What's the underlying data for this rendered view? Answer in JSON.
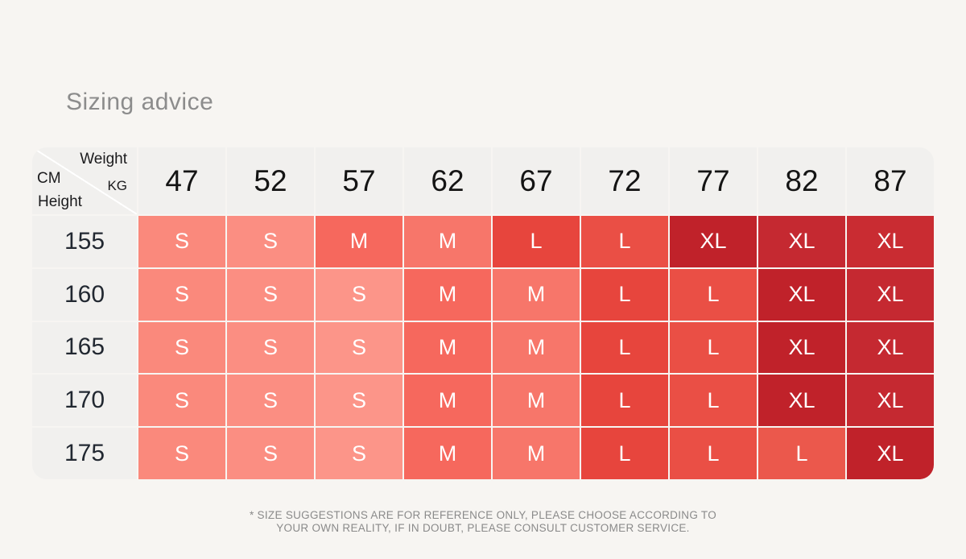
{
  "page": {
    "title": "Sizing advice",
    "background": "#F7F5F2",
    "disclaimer_line1": "* SIZE SUGGESTIONS ARE FOR REFERENCE ONLY, PLEASE CHOOSE ACCORDING TO",
    "disclaimer_line2": "YOUR OWN REALITY, IF IN DOUBT, PLEASE CONSULT CUSTOMER SERVICE."
  },
  "table": {
    "corner": {
      "weight": "Weight",
      "kg": "KG",
      "cm": "CM",
      "height": "Height"
    },
    "weights": [
      "47",
      "52",
      "57",
      "62",
      "67",
      "72",
      "77",
      "82",
      "87"
    ],
    "rows": [
      {
        "height": "155",
        "cells": [
          {
            "label": "S",
            "color": "#FA897C"
          },
          {
            "label": "S",
            "color": "#FB8E82"
          },
          {
            "label": "M",
            "color": "#F6685D"
          },
          {
            "label": "M",
            "color": "#F7766A"
          },
          {
            "label": "L",
            "color": "#E7453D"
          },
          {
            "label": "L",
            "color": "#EA4F45"
          },
          {
            "label": "XL",
            "color": "#C0222A"
          },
          {
            "label": "XL",
            "color": "#C52931"
          },
          {
            "label": "XL",
            "color": "#C92C32"
          }
        ]
      },
      {
        "height": "160",
        "cells": [
          {
            "label": "S",
            "color": "#FA897C"
          },
          {
            "label": "S",
            "color": "#FB8E82"
          },
          {
            "label": "S",
            "color": "#FC9589"
          },
          {
            "label": "M",
            "color": "#F6685D"
          },
          {
            "label": "M",
            "color": "#F7766A"
          },
          {
            "label": "L",
            "color": "#E7453D"
          },
          {
            "label": "L",
            "color": "#EA4F45"
          },
          {
            "label": "XL",
            "color": "#C0222A"
          },
          {
            "label": "XL",
            "color": "#C52931"
          }
        ]
      },
      {
        "height": "165",
        "cells": [
          {
            "label": "S",
            "color": "#FA897C"
          },
          {
            "label": "S",
            "color": "#FB8E82"
          },
          {
            "label": "S",
            "color": "#FC9589"
          },
          {
            "label": "M",
            "color": "#F6685D"
          },
          {
            "label": "M",
            "color": "#F7766A"
          },
          {
            "label": "L",
            "color": "#E7453D"
          },
          {
            "label": "L",
            "color": "#EA4F45"
          },
          {
            "label": "XL",
            "color": "#C0222A"
          },
          {
            "label": "XL",
            "color": "#C52931"
          }
        ]
      },
      {
        "height": "170",
        "cells": [
          {
            "label": "S",
            "color": "#FA897C"
          },
          {
            "label": "S",
            "color": "#FB8E82"
          },
          {
            "label": "S",
            "color": "#FC9589"
          },
          {
            "label": "M",
            "color": "#F6685D"
          },
          {
            "label": "M",
            "color": "#F7766A"
          },
          {
            "label": "L",
            "color": "#E7453D"
          },
          {
            "label": "L",
            "color": "#EA4F45"
          },
          {
            "label": "XL",
            "color": "#C0222A"
          },
          {
            "label": "XL",
            "color": "#C52931"
          }
        ]
      },
      {
        "height": "175",
        "cells": [
          {
            "label": "S",
            "color": "#FA897C"
          },
          {
            "label": "S",
            "color": "#FB8E82"
          },
          {
            "label": "S",
            "color": "#FC9589"
          },
          {
            "label": "M",
            "color": "#F6685D"
          },
          {
            "label": "M",
            "color": "#F7766A"
          },
          {
            "label": "L",
            "color": "#E7453D"
          },
          {
            "label": "L",
            "color": "#EA4F45"
          },
          {
            "label": "L",
            "color": "#EB584C"
          },
          {
            "label": "XL",
            "color": "#C0222A"
          }
        ]
      }
    ]
  },
  "chart_data": {
    "type": "heatmap",
    "title": "Sizing advice",
    "x_label": "Weight (KG)",
    "y_label": "Height (CM)",
    "x": [
      47,
      52,
      57,
      62,
      67,
      72,
      77,
      82,
      87
    ],
    "y": [
      155,
      160,
      165,
      170,
      175
    ],
    "values": [
      [
        "S",
        "S",
        "M",
        "M",
        "L",
        "L",
        "XL",
        "XL",
        "XL"
      ],
      [
        "S",
        "S",
        "S",
        "M",
        "M",
        "L",
        "L",
        "XL",
        "XL"
      ],
      [
        "S",
        "S",
        "S",
        "M",
        "M",
        "L",
        "L",
        "XL",
        "XL"
      ],
      [
        "S",
        "S",
        "S",
        "M",
        "M",
        "L",
        "L",
        "XL",
        "XL"
      ],
      [
        "S",
        "S",
        "S",
        "M",
        "M",
        "L",
        "L",
        "L",
        "XL"
      ]
    ],
    "size_colors": {
      "S": "#FA897C",
      "M": "#F6685D",
      "L": "#E7453D",
      "XL": "#C0222A"
    },
    "legend": false,
    "grid": false,
    "annotation": "* SIZE SUGGESTIONS ARE FOR REFERENCE ONLY, PLEASE CHOOSE ACCORDING TO YOUR OWN REALITY, IF IN DOUBT, PLEASE CONSULT CUSTOMER SERVICE."
  }
}
